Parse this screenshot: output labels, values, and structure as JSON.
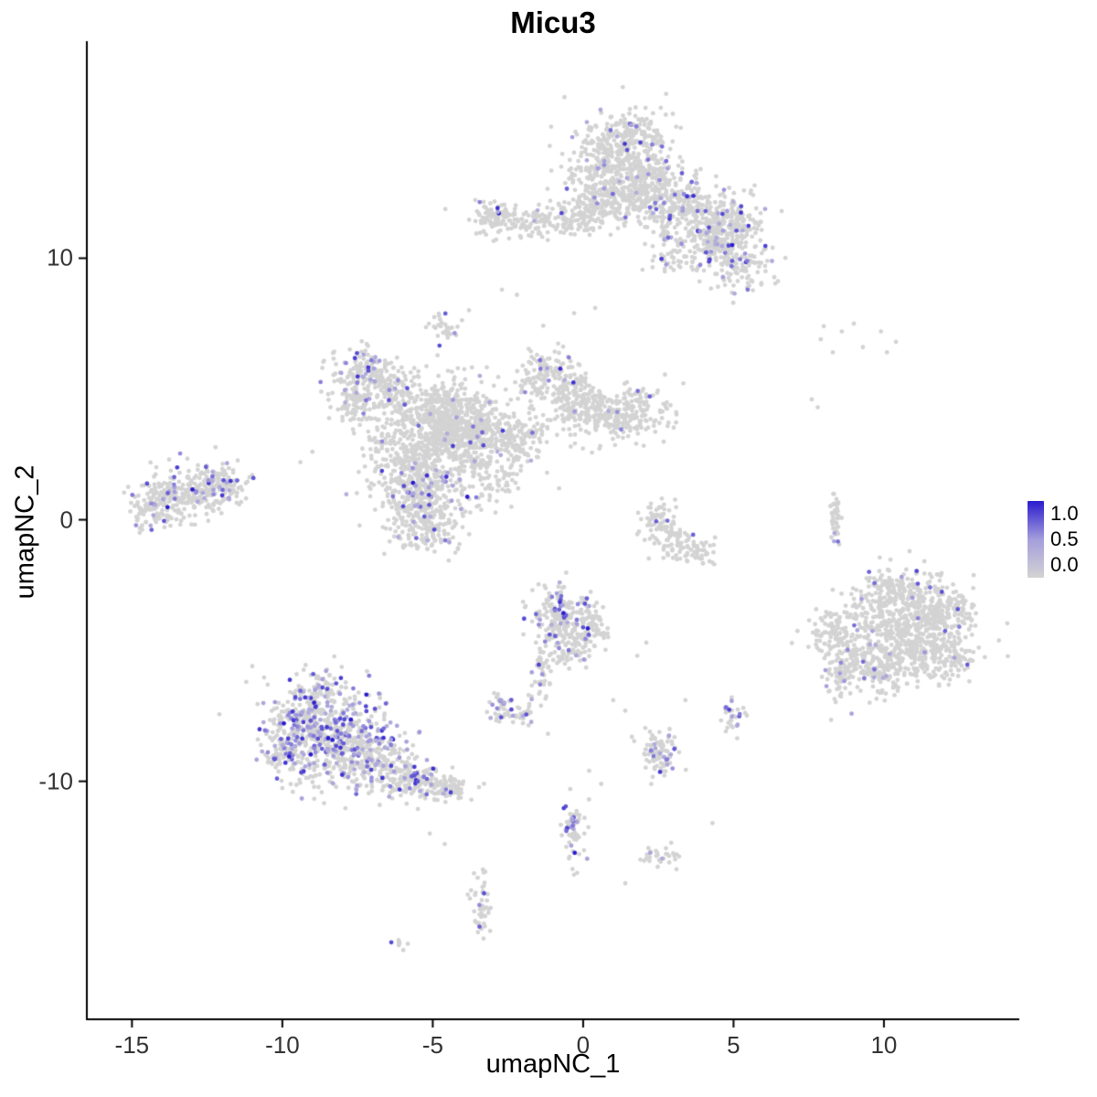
{
  "chart_data": {
    "type": "scatter",
    "title": "Micu3",
    "xlabel": "umapNC_1",
    "ylabel": "umapNC_2",
    "xlim": [
      -16.5,
      14.5
    ],
    "ylim": [
      -19.1,
      18.3
    ],
    "grid": false,
    "x_ticks": [
      -15,
      -10,
      -5,
      0,
      5,
      10
    ],
    "x_tick_labels": [
      "-15",
      "-10",
      "-5",
      "0",
      "5",
      "10"
    ],
    "y_ticks": [
      -10,
      0,
      10
    ],
    "y_tick_labels": [
      "-10",
      "0",
      "10"
    ],
    "legend": {
      "position": "right",
      "title": "",
      "labels": [
        "1.0",
        "0.5",
        "0.0"
      ],
      "values": [
        1.0,
        0.5,
        0.0
      ],
      "color_high": "#2A1BCE",
      "color_mid": "#A49EDC",
      "color_low": "#D3D3D3"
    },
    "point_color_zero": "#D3D3D3",
    "expression_scale": [
      0.0,
      1.0
    ],
    "clusters": [
      {
        "x": 1.2,
        "y": 13.6,
        "sx": 0.9,
        "sy": 0.85,
        "n": 420,
        "e": 0.05
      },
      {
        "x": 2.2,
        "y": 12.6,
        "sx": 0.7,
        "sy": 0.6,
        "n": 220,
        "e": 0.04
      },
      {
        "x": 0.6,
        "y": 12.4,
        "sx": 0.5,
        "sy": 0.5,
        "n": 130,
        "e": 0.03
      },
      {
        "x": 1.7,
        "y": 14.8,
        "sx": 0.55,
        "sy": 0.35,
        "n": 90,
        "e": 0.06
      },
      {
        "x": 3.4,
        "y": 11.9,
        "sx": 0.65,
        "sy": 0.5,
        "n": 160,
        "e": 0.08
      },
      {
        "x": 4.8,
        "y": 11.4,
        "sx": 0.6,
        "sy": 0.55,
        "n": 230,
        "e": 0.12
      },
      {
        "x": 5.1,
        "y": 9.8,
        "sx": 0.55,
        "sy": 0.5,
        "n": 150,
        "e": 0.12
      },
      {
        "x": 4.2,
        "y": 10.6,
        "sx": 0.4,
        "sy": 0.4,
        "n": 70,
        "e": 0.05
      },
      {
        "x": -1.6,
        "y": 11.4,
        "sx": 1.1,
        "sy": 0.3,
        "n": 140,
        "e": 0.04
      },
      {
        "x": -3.0,
        "y": 11.6,
        "sx": 0.4,
        "sy": 0.3,
        "n": 70,
        "e": 0.06
      },
      {
        "x": 0.0,
        "y": 11.7,
        "sx": 0.6,
        "sy": 0.35,
        "n": 80,
        "e": 0.03
      },
      {
        "x": 2.9,
        "y": 10.5,
        "sx": 0.35,
        "sy": 0.6,
        "n": 60,
        "e": 0.05
      },
      {
        "x": -4.6,
        "y": 7.4,
        "sx": 0.28,
        "sy": 0.33,
        "n": 30,
        "e": 0.12
      },
      {
        "x": -7.3,
        "y": 5.7,
        "sx": 0.55,
        "sy": 0.45,
        "n": 130,
        "e": 0.18
      },
      {
        "x": -6.6,
        "y": 4.9,
        "sx": 0.5,
        "sy": 0.45,
        "n": 110,
        "e": 0.08
      },
      {
        "x": -7.7,
        "y": 4.4,
        "sx": 0.35,
        "sy": 0.45,
        "n": 70,
        "e": 0.06
      },
      {
        "x": -6.8,
        "y": 3.0,
        "sx": 0.25,
        "sy": 0.5,
        "n": 40,
        "e": 0.04
      },
      {
        "x": -4.7,
        "y": 4.0,
        "sx": 1.0,
        "sy": 0.75,
        "n": 520,
        "e": 0.03
      },
      {
        "x": -4.0,
        "y": 3.3,
        "sx": 0.6,
        "sy": 0.5,
        "n": 260,
        "e": 0.03
      },
      {
        "x": -5.6,
        "y": 2.2,
        "sx": 0.6,
        "sy": 0.6,
        "n": 200,
        "e": 0.05
      },
      {
        "x": -5.4,
        "y": 0.8,
        "sx": 0.75,
        "sy": 0.7,
        "n": 330,
        "e": 0.1
      },
      {
        "x": -5.2,
        "y": -0.5,
        "sx": 0.5,
        "sy": 0.4,
        "n": 110,
        "e": 0.08
      },
      {
        "x": -1.1,
        "y": 5.4,
        "sx": 0.55,
        "sy": 0.6,
        "n": 160,
        "e": 0.06
      },
      {
        "x": -0.2,
        "y": 4.5,
        "sx": 0.5,
        "sy": 0.5,
        "n": 130,
        "e": 0.04
      },
      {
        "x": 1.3,
        "y": 4.0,
        "sx": 0.75,
        "sy": 0.55,
        "n": 260,
        "e": 0.02
      },
      {
        "x": -2.4,
        "y": 3.2,
        "sx": 0.8,
        "sy": 0.45,
        "n": 170,
        "e": 0.03
      },
      {
        "x": -2.6,
        "y": 1.6,
        "sx": 0.3,
        "sy": 0.8,
        "rot": -35,
        "n": 70,
        "e": 0.02
      },
      {
        "x": -3.6,
        "y": 2.2,
        "sx": 0.4,
        "sy": 0.4,
        "n": 80,
        "e": 0.04
      },
      {
        "x": -13.0,
        "y": 1.0,
        "sx": 0.85,
        "sy": 0.5,
        "n": 260,
        "e": 0.1
      },
      {
        "x": -14.2,
        "y": 0.4,
        "sx": 0.5,
        "sy": 0.4,
        "n": 90,
        "e": 0.08
      },
      {
        "x": -12.0,
        "y": 1.4,
        "sx": 0.4,
        "sy": 0.35,
        "n": 70,
        "e": 0.1
      },
      {
        "x": 2.5,
        "y": 0.1,
        "sx": 0.3,
        "sy": 0.4,
        "n": 60,
        "e": 0.03
      },
      {
        "x": 3.0,
        "y": -0.8,
        "sx": 0.35,
        "sy": 0.3,
        "n": 50,
        "e": 0.02
      },
      {
        "x": 3.7,
        "y": -1.2,
        "sx": 0.35,
        "sy": 0.25,
        "n": 45,
        "e": 0.02
      },
      {
        "x": 8.35,
        "y": 0.0,
        "sx": 0.1,
        "sy": 0.55,
        "n": 45,
        "e": 0.06
      },
      {
        "x": 10.6,
        "y": -4.2,
        "sx": 1.15,
        "sy": 0.95,
        "n": 600,
        "e": 0.02
      },
      {
        "x": 11.7,
        "y": -3.4,
        "sx": 0.6,
        "sy": 0.5,
        "n": 150,
        "e": 0.02
      },
      {
        "x": 9.7,
        "y": -5.6,
        "sx": 0.6,
        "sy": 0.55,
        "n": 150,
        "e": 0.03
      },
      {
        "x": 8.2,
        "y": -4.4,
        "sx": 0.3,
        "sy": 0.4,
        "n": 60,
        "e": 0.05
      },
      {
        "x": 8.5,
        "y": -5.9,
        "sx": 0.25,
        "sy": 0.6,
        "n": 70,
        "e": 0.1
      },
      {
        "x": 11.9,
        "y": -5.5,
        "sx": 0.5,
        "sy": 0.4,
        "n": 90,
        "e": 0.02
      },
      {
        "x": 10.4,
        "y": -2.6,
        "sx": 0.6,
        "sy": 0.35,
        "n": 90,
        "e": 0.04
      },
      {
        "x": -0.8,
        "y": -3.7,
        "sx": 0.5,
        "sy": 0.6,
        "n": 190,
        "e": 0.15
      },
      {
        "x": -0.4,
        "y": -4.8,
        "sx": 0.4,
        "sy": 0.4,
        "n": 80,
        "e": 0.08
      },
      {
        "x": -1.4,
        "y": -5.9,
        "sx": 0.18,
        "sy": 0.6,
        "n": 45,
        "e": 0.05
      },
      {
        "x": 0.3,
        "y": -4.0,
        "sx": 0.3,
        "sy": 0.5,
        "n": 60,
        "e": 0.05
      },
      {
        "x": -2.7,
        "y": -7.2,
        "sx": 0.35,
        "sy": 0.3,
        "n": 45,
        "e": 0.2
      },
      {
        "x": -1.9,
        "y": -7.4,
        "sx": 0.2,
        "sy": 0.2,
        "n": 20,
        "e": 0.1
      },
      {
        "x": -8.3,
        "y": -8.4,
        "sx": 1.05,
        "sy": 0.95,
        "n": 520,
        "e": 0.28
      },
      {
        "x": -9.3,
        "y": -7.6,
        "sx": 0.5,
        "sy": 0.5,
        "n": 130,
        "e": 0.25
      },
      {
        "x": -7.0,
        "y": -9.3,
        "sx": 0.6,
        "sy": 0.5,
        "n": 160,
        "e": 0.2
      },
      {
        "x": -5.8,
        "y": -9.9,
        "sx": 0.5,
        "sy": 0.4,
        "n": 120,
        "e": 0.15
      },
      {
        "x": -4.6,
        "y": -10.3,
        "sx": 0.45,
        "sy": 0.3,
        "n": 90,
        "e": 0.12
      },
      {
        "x": -8.8,
        "y": -6.4,
        "sx": 0.35,
        "sy": 0.4,
        "n": 60,
        "e": 0.2
      },
      {
        "x": -9.9,
        "y": -8.9,
        "sx": 0.4,
        "sy": 0.5,
        "n": 80,
        "e": 0.25
      },
      {
        "x": 2.5,
        "y": -8.9,
        "sx": 0.35,
        "sy": 0.45,
        "n": 90,
        "e": 0.18
      },
      {
        "x": 5.0,
        "y": -7.5,
        "sx": 0.22,
        "sy": 0.28,
        "n": 30,
        "e": 0.25
      },
      {
        "x": -0.3,
        "y": -11.9,
        "sx": 0.2,
        "sy": 0.65,
        "n": 60,
        "e": 0.3
      },
      {
        "x": 2.6,
        "y": -12.9,
        "sx": 0.3,
        "sy": 0.22,
        "n": 30,
        "e": 0.05
      },
      {
        "x": -3.4,
        "y": -14.7,
        "sx": 0.16,
        "sy": 0.65,
        "n": 50,
        "e": 0.06
      },
      {
        "x": -6.1,
        "y": -16.2,
        "sx": 0.15,
        "sy": 0.12,
        "n": 8,
        "e": 0.15
      }
    ],
    "sparse_points": [
      [
        7.9,
        6.9
      ],
      [
        8.6,
        7.2
      ],
      [
        9.3,
        6.6
      ],
      [
        9.9,
        7.2
      ],
      [
        10.4,
        6.8
      ],
      [
        8.3,
        6.4
      ],
      [
        9.0,
        7.5
      ],
      [
        10.1,
        6.4
      ],
      [
        8.0,
        7.4
      ],
      [
        7.6,
        4.6
      ],
      [
        7.8,
        4.3
      ],
      [
        -2.7,
        8.8
      ],
      [
        -2.2,
        8.6
      ],
      [
        0.4,
        8.1
      ],
      [
        -0.3,
        7.9
      ],
      [
        1.0,
        -6.9
      ],
      [
        1.4,
        -7.3
      ],
      [
        -4.6,
        -12.4
      ],
      [
        -5.1,
        -12.0
      ],
      [
        0.2,
        -9.6
      ],
      [
        0.6,
        -10.1
      ],
      [
        4.3,
        -11.6
      ],
      [
        1.4,
        -13.9
      ],
      [
        -11.2,
        -6.2
      ],
      [
        -11.0,
        -5.6
      ],
      [
        6.3,
        10.4
      ],
      [
        6.6,
        11.8
      ],
      [
        -9.0,
        2.6
      ],
      [
        -9.4,
        2.2
      ],
      [
        2.1,
        -4.7
      ],
      [
        1.8,
        -5.2
      ],
      [
        -0.2,
        -13.5
      ],
      [
        3.4,
        -6.9
      ],
      [
        -1.2,
        1.8
      ],
      [
        -0.8,
        1.2
      ]
    ]
  }
}
